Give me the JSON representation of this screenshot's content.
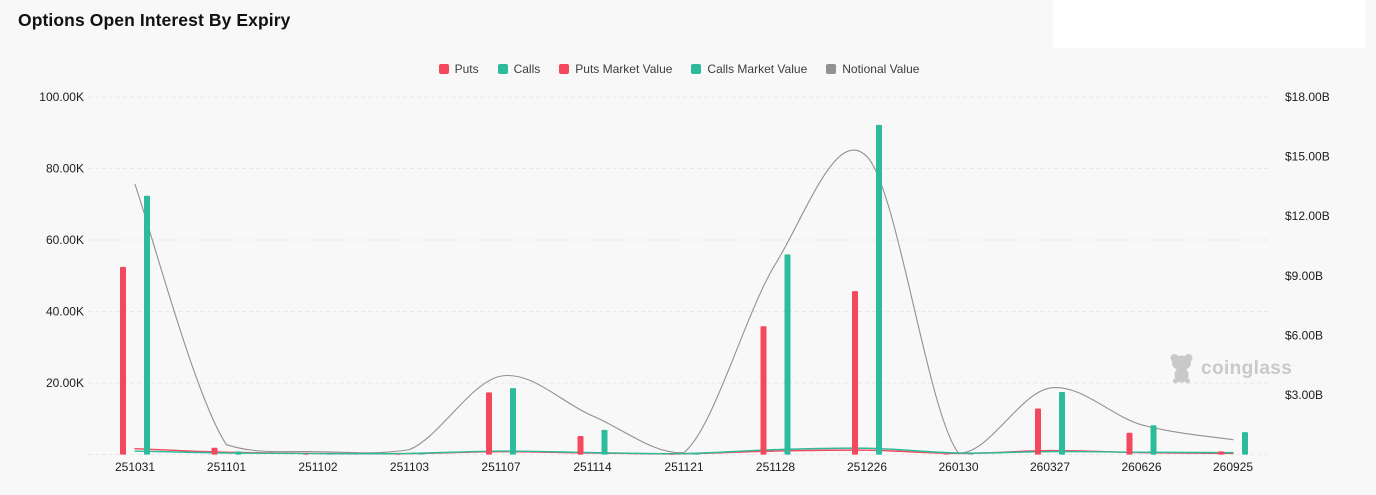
{
  "header": {
    "title": "Options Open Interest By Expiry"
  },
  "watermark": {
    "text": "coinglass"
  },
  "colors": {
    "puts": "#f4485e",
    "calls": "#2dbb9b",
    "notional": "#919191",
    "grid": "#e7e7e7",
    "axis_text": "#1c1c1c",
    "legend_text": "#3d3d3d",
    "watermark": "#c9c9c9",
    "background": "#f8f8f8",
    "overlay_box": "#ffffff"
  },
  "legend": [
    {
      "label": "Puts",
      "color_key": "puts"
    },
    {
      "label": "Calls",
      "color_key": "calls"
    },
    {
      "label": "Puts Market Value",
      "color_key": "puts"
    },
    {
      "label": "Calls Market Value",
      "color_key": "calls"
    },
    {
      "label": "Notional Value",
      "color_key": "notional"
    }
  ],
  "chart_data": {
    "type": "mixed-bar-line",
    "title": "Options Open Interest By Expiry",
    "legend_position": "top-center",
    "grid": true,
    "categories": [
      "251031",
      "251101",
      "251102",
      "251103",
      "251107",
      "251114",
      "251121",
      "251128",
      "251226",
      "260130",
      "260327",
      "260626",
      "260925"
    ],
    "series": [
      {
        "name": "Puts",
        "type": "bar",
        "axis": "left",
        "color_key": "puts",
        "values": [
          52500,
          1900,
          250,
          150,
          17400,
          5200,
          150,
          35900,
          45700,
          150,
          12900,
          6100,
          900
        ]
      },
      {
        "name": "Calls",
        "type": "bar",
        "axis": "left",
        "color_key": "calls",
        "values": [
          72400,
          900,
          350,
          150,
          18600,
          6900,
          200,
          56000,
          92200,
          150,
          17500,
          8200,
          6300
        ]
      },
      {
        "name": "Puts Market Value",
        "type": "line",
        "axis": "right",
        "color_key": "puts",
        "values": [
          0.3,
          0.12,
          0.06,
          0.05,
          0.15,
          0.08,
          0.04,
          0.18,
          0.22,
          0.06,
          0.2,
          0.1,
          0.06
        ]
      },
      {
        "name": "Calls Market Value",
        "type": "line",
        "axis": "right",
        "color_key": "calls",
        "values": [
          0.18,
          0.08,
          0.05,
          0.06,
          0.18,
          0.1,
          0.05,
          0.25,
          0.32,
          0.08,
          0.15,
          0.12,
          0.1
        ]
      },
      {
        "name": "Notional Value",
        "type": "line",
        "axis": "right",
        "color_key": "notional",
        "values": [
          13.6,
          0.5,
          0.15,
          0.25,
          3.95,
          1.95,
          0.1,
          9.6,
          15.0,
          0.08,
          3.35,
          1.5,
          0.75
        ]
      }
    ],
    "left_axis": {
      "unit": "contracts (K)",
      "max": 100000,
      "ticks": [
        {
          "v": 100000,
          "label": "100.00K"
        },
        {
          "v": 80000,
          "label": "80.00K"
        },
        {
          "v": 60000,
          "label": "60.00K"
        },
        {
          "v": 40000,
          "label": "40.00K"
        },
        {
          "v": 20000,
          "label": "20.00K"
        }
      ]
    },
    "right_axis": {
      "unit": "USD (B)",
      "max": 18,
      "ticks": [
        {
          "v": 18,
          "label": "$18.00B"
        },
        {
          "v": 15,
          "label": "$15.00B"
        },
        {
          "v": 12,
          "label": "$12.00B"
        },
        {
          "v": 9,
          "label": "$9.00B"
        },
        {
          "v": 6,
          "label": "$6.00B"
        },
        {
          "v": 3,
          "label": "$3.00B"
        }
      ]
    }
  }
}
